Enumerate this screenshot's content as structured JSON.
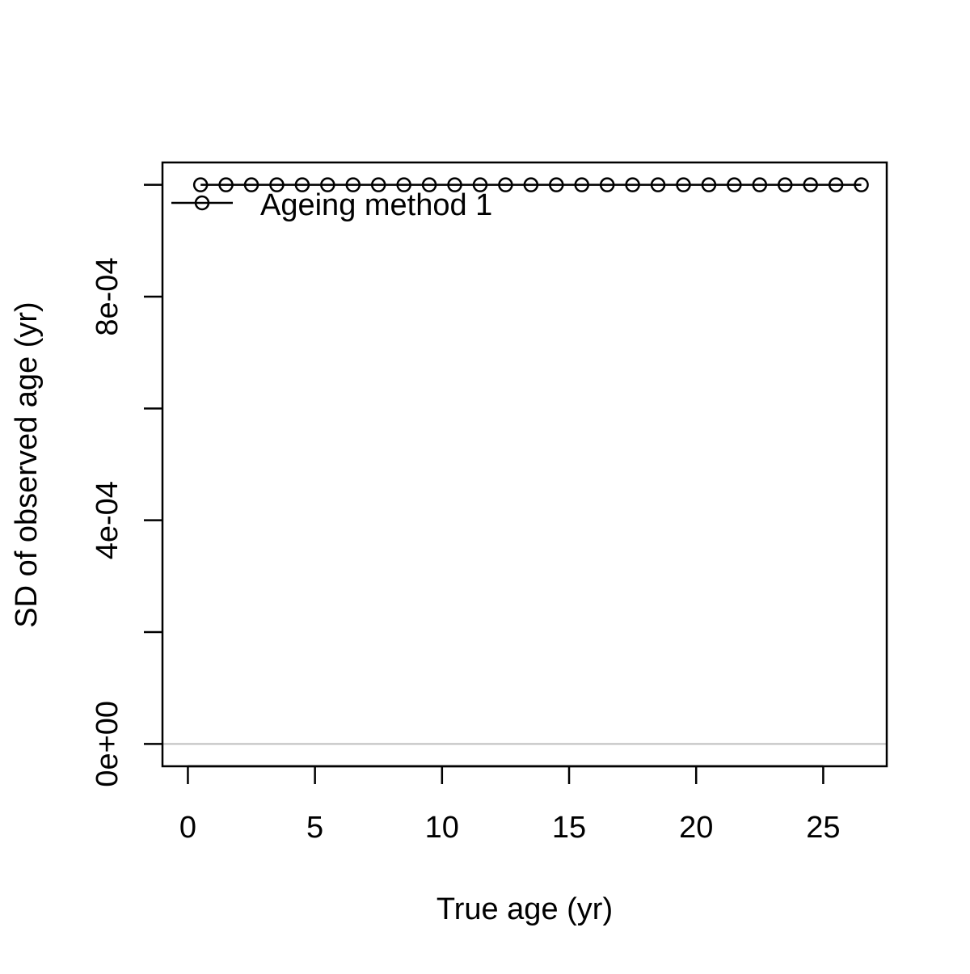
{
  "chart_data": {
    "type": "line",
    "title": "",
    "xlabel": "True age (yr)",
    "ylabel": "SD of observed age (yr)",
    "xlim": [
      -1.0,
      27.5
    ],
    "ylim": [
      -4e-05,
      0.00104
    ],
    "x_ticks": [
      0,
      5,
      10,
      15,
      20,
      25
    ],
    "x_tick_labels": [
      "0",
      "5",
      "10",
      "15",
      "20",
      "25"
    ],
    "y_ticks": [
      0,
      0.0002,
      0.0004,
      0.0006,
      0.0008,
      0.001
    ],
    "y_tick_labels": [
      "0e+00",
      "",
      "4e-04",
      "",
      "8e-04",
      ""
    ],
    "reference_line": {
      "y": 0,
      "color": "#bebebe"
    },
    "legend": {
      "position": "top-left",
      "entries": [
        "Ageing method 1"
      ]
    },
    "series": [
      {
        "name": "Ageing method 1",
        "color": "#000000",
        "marker": "open-circle",
        "x": [
          0.5,
          1.5,
          2.5,
          3.5,
          4.5,
          5.5,
          6.5,
          7.5,
          8.5,
          9.5,
          10.5,
          11.5,
          12.5,
          13.5,
          14.5,
          15.5,
          16.5,
          17.5,
          18.5,
          19.5,
          20.5,
          21.5,
          22.5,
          23.5,
          24.5,
          25.5,
          26.5
        ],
        "y": [
          0.001,
          0.001,
          0.001,
          0.001,
          0.001,
          0.001,
          0.001,
          0.001,
          0.001,
          0.001,
          0.001,
          0.001,
          0.001,
          0.001,
          0.001,
          0.001,
          0.001,
          0.001,
          0.001,
          0.001,
          0.001,
          0.001,
          0.001,
          0.001,
          0.001,
          0.001,
          0.001
        ]
      }
    ]
  }
}
